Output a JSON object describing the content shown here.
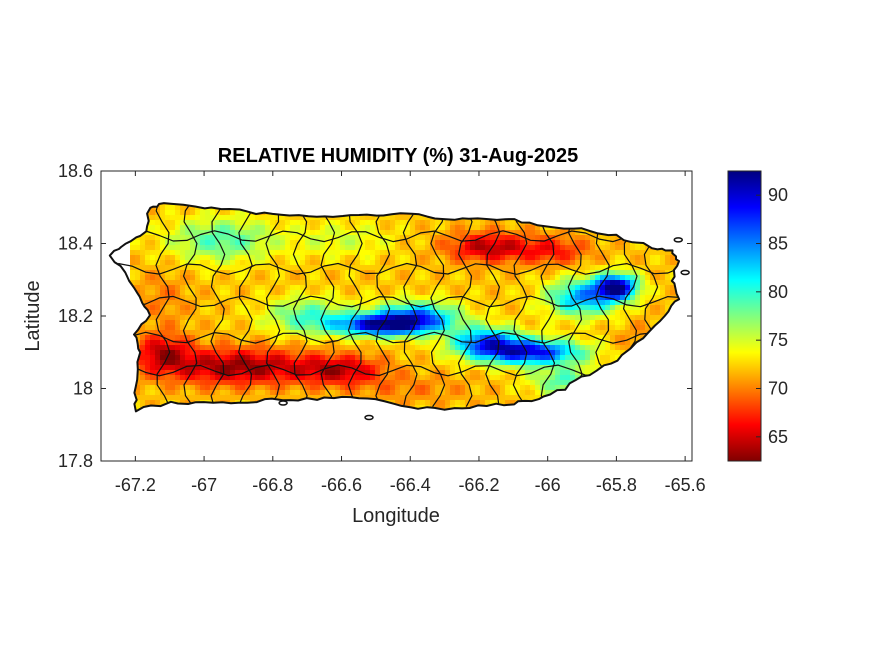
{
  "map": {
    "title": "RELATIVE HUMIDITY (%) 31-Aug-2025",
    "xlabel": "Longitude",
    "ylabel": "Latitude",
    "xlim": [
      -67.3,
      -65.58
    ],
    "ylim": [
      17.8,
      18.6
    ],
    "x_ticks": [
      -67.2,
      -67,
      -66.8,
      -66.6,
      -66.4,
      -66.2,
      -66,
      -65.8,
      -65.6
    ],
    "x_tick_labels": [
      "-67.2",
      "-67",
      "-66.8",
      "-66.6",
      "-66.4",
      "-66.2",
      "-66",
      "-65.8",
      "-65.6"
    ],
    "y_ticks": [
      17.8,
      18,
      18.2,
      18.4,
      18.6
    ],
    "y_tick_labels": [
      "17.8",
      "18",
      "18.2",
      "18.4",
      "18.6"
    ],
    "colorbar": {
      "min": 62.5,
      "max": 92.5,
      "ticks": [
        65,
        70,
        75,
        80,
        85,
        90
      ],
      "tick_labels": [
        "65",
        "70",
        "75",
        "80",
        "85",
        "90"
      ],
      "colormap": "jet",
      "colors": [
        "#800000",
        "#ff0000",
        "#ff8000",
        "#ffff00",
        "#80ff80",
        "#00ffff",
        "#0080ff",
        "#0000ff",
        "#000080"
      ]
    },
    "humidity_field": {
      "base_value": 72,
      "features": [
        {
          "lon": -66.48,
          "lat": 18.175,
          "value": 90,
          "r_lon": 0.14,
          "r_lat": 0.03
        },
        {
          "lon": -66.38,
          "lat": 18.2,
          "value": 84,
          "r_lon": 0.12,
          "r_lat": 0.04
        },
        {
          "lon": -66.05,
          "lat": 18.1,
          "value": 89,
          "r_lon": 0.15,
          "r_lat": 0.035
        },
        {
          "lon": -66.18,
          "lat": 18.13,
          "value": 85,
          "r_lon": 0.1,
          "r_lat": 0.04
        },
        {
          "lon": -65.8,
          "lat": 18.28,
          "value": 92,
          "r_lon": 0.06,
          "r_lat": 0.035
        },
        {
          "lon": -65.9,
          "lat": 18.25,
          "value": 84,
          "r_lon": 0.1,
          "r_lat": 0.05
        },
        {
          "lon": -66.7,
          "lat": 18.2,
          "value": 79,
          "r_lon": 0.12,
          "r_lat": 0.05
        },
        {
          "lon": -66.95,
          "lat": 18.41,
          "value": 79,
          "r_lon": 0.15,
          "r_lat": 0.06
        },
        {
          "lon": -66.6,
          "lat": 18.41,
          "value": 75,
          "r_lon": 0.15,
          "r_lat": 0.05
        },
        {
          "lon": -65.95,
          "lat": 18.02,
          "value": 79,
          "r_lon": 0.1,
          "r_lat": 0.04
        },
        {
          "lon": -66.9,
          "lat": 18.06,
          "value": 63,
          "r_lon": 0.22,
          "r_lat": 0.05
        },
        {
          "lon": -67.12,
          "lat": 18.1,
          "value": 65,
          "r_lon": 0.08,
          "r_lat": 0.05
        },
        {
          "lon": -66.6,
          "lat": 18.05,
          "value": 65,
          "r_lon": 0.12,
          "r_lat": 0.04
        },
        {
          "lon": -66.17,
          "lat": 18.39,
          "value": 64,
          "r_lon": 0.12,
          "r_lat": 0.04
        },
        {
          "lon": -65.98,
          "lat": 18.38,
          "value": 67,
          "r_lon": 0.1,
          "r_lat": 0.04
        },
        {
          "lon": -67.12,
          "lat": 18.25,
          "value": 70,
          "r_lon": 0.08,
          "r_lat": 0.08
        },
        {
          "lon": -66.4,
          "lat": 18.0,
          "value": 70,
          "r_lon": 0.18,
          "r_lat": 0.04
        },
        {
          "lon": -65.72,
          "lat": 18.12,
          "value": 70,
          "r_lon": 0.08,
          "r_lat": 0.06
        }
      ]
    }
  }
}
